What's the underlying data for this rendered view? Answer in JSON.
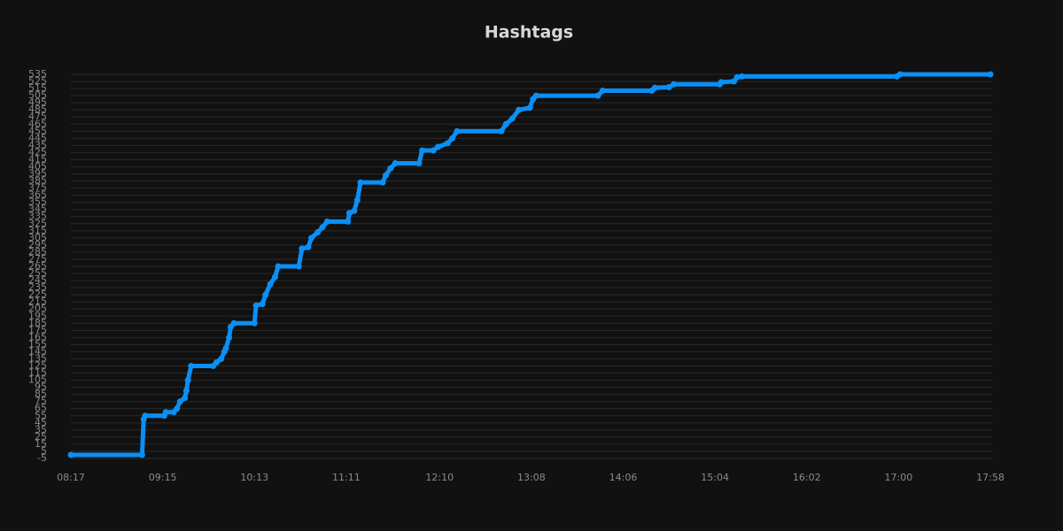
{
  "chart_data": {
    "type": "line",
    "title": "Hashtags",
    "color": "#0a8ff5",
    "grid": true,
    "x": [
      "08:17",
      "09:02",
      "09:03",
      "09:04",
      "09:16",
      "09:17",
      "09:22",
      "09:24",
      "09:26",
      "09:29",
      "09:30",
      "09:31",
      "09:33",
      "09:47",
      "09:49",
      "09:52",
      "09:54",
      "09:55",
      "09:57",
      "09:58",
      "10:00",
      "10:13",
      "10:14",
      "10:18",
      "10:20",
      "10:23",
      "10:26",
      "10:28",
      "10:41",
      "10:43",
      "10:47",
      "10:49",
      "10:53",
      "10:56",
      "10:59",
      "11:12",
      "11:13",
      "11:16",
      "11:18",
      "11:20",
      "11:34",
      "11:36",
      "11:39",
      "11:42",
      "11:57",
      "11:59",
      "12:06",
      "12:09",
      "12:15",
      "12:18",
      "12:21",
      "12:49",
      "12:52",
      "12:56",
      "13:00",
      "13:07",
      "13:09",
      "13:11",
      "13:50",
      "13:53",
      "14:24",
      "14:26",
      "14:35",
      "14:38",
      "15:07",
      "15:08",
      "15:16",
      "15:18",
      "15:21",
      "16:59",
      "17:01",
      "17:58"
    ],
    "values": [
      0,
      0,
      50,
      55,
      55,
      60,
      60,
      65,
      75,
      80,
      90,
      105,
      125,
      125,
      130,
      135,
      145,
      150,
      165,
      180,
      185,
      185,
      210,
      212,
      225,
      240,
      250,
      265,
      265,
      290,
      292,
      305,
      313,
      320,
      328,
      328,
      340,
      343,
      358,
      383,
      383,
      393,
      403,
      410,
      410,
      428,
      428,
      433,
      438,
      445,
      455,
      455,
      465,
      473,
      485,
      488,
      500,
      505,
      505,
      512,
      512,
      516,
      517,
      521,
      521,
      524,
      525,
      531,
      532,
      532,
      535,
      535
    ],
    "xlim": [
      "08:17",
      "17:58"
    ],
    "xticks": [
      "08:17",
      "09:15",
      "10:13",
      "11:11",
      "12:10",
      "13:08",
      "14:06",
      "15:04",
      "16:02",
      "17:00",
      "17:58"
    ],
    "ylim": [
      -5,
      535
    ],
    "yticks": [
      -5,
      5,
      15,
      25,
      35,
      45,
      55,
      65,
      75,
      85,
      95,
      105,
      115,
      125,
      135,
      145,
      155,
      165,
      175,
      185,
      195,
      205,
      215,
      225,
      235,
      245,
      255,
      265,
      275,
      285,
      295,
      305,
      315,
      325,
      335,
      345,
      355,
      365,
      375,
      385,
      395,
      405,
      415,
      425,
      435,
      445,
      455,
      465,
      475,
      485,
      495,
      505,
      515,
      525,
      535
    ]
  }
}
